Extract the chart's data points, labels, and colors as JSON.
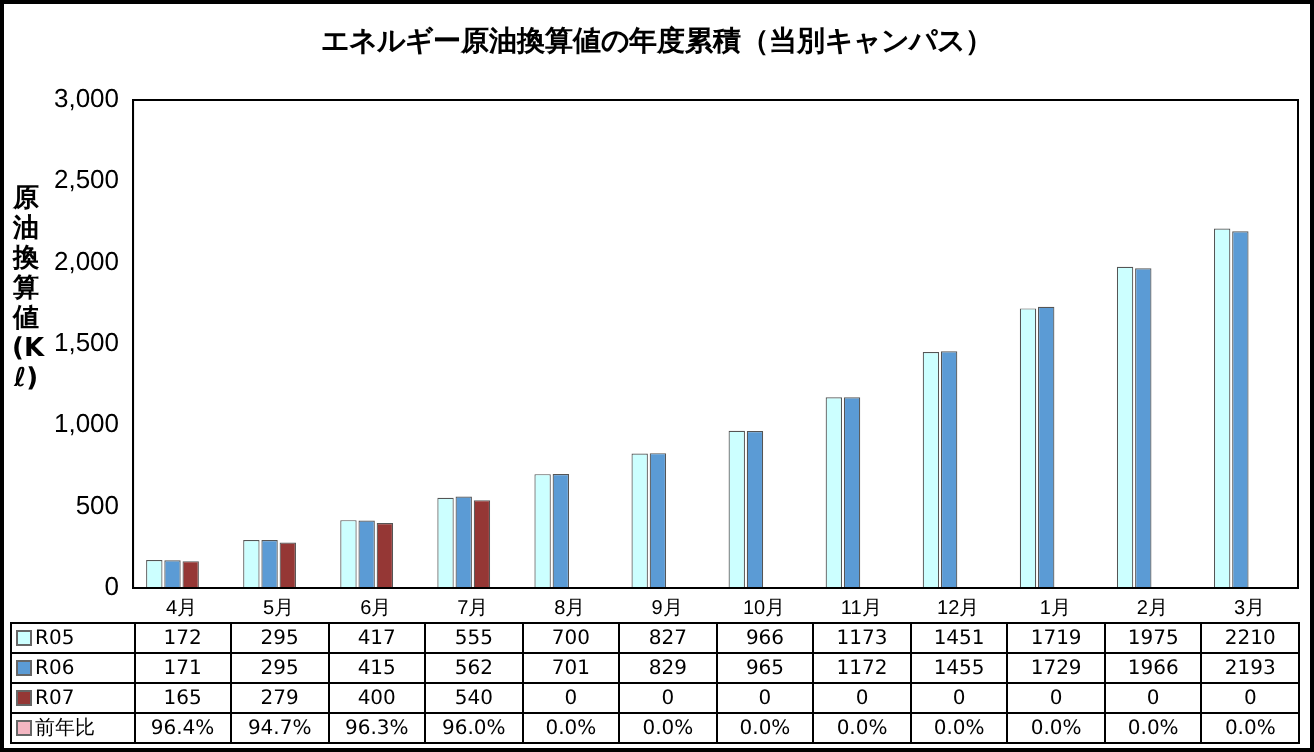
{
  "chart_data": {
    "type": "bar",
    "title": "エネルギー原油換算値の年度累積（当別キャンパス）",
    "ylabel": "原油換算値(Kℓ)",
    "categories": [
      "4月",
      "5月",
      "6月",
      "7月",
      "8月",
      "9月",
      "10月",
      "11月",
      "12月",
      "1月",
      "2月",
      "3月"
    ],
    "series": [
      {
        "name": "R05",
        "color": "#ccffff",
        "values": [
          172,
          295,
          417,
          555,
          700,
          827,
          966,
          1173,
          1451,
          1719,
          1975,
          2210
        ]
      },
      {
        "name": "R06",
        "color": "#5b9bd5",
        "values": [
          171,
          295,
          415,
          562,
          701,
          829,
          965,
          1172,
          1455,
          1729,
          1966,
          2193
        ]
      },
      {
        "name": "R07",
        "color": "#953735",
        "values": [
          165,
          279,
          400,
          540,
          0,
          0,
          0,
          0,
          0,
          0,
          0,
          0
        ]
      },
      {
        "name": "前年比",
        "color": "#f4b6c2",
        "values": [
          null,
          null,
          null,
          null,
          null,
          null,
          null,
          null,
          null,
          null,
          null,
          null
        ],
        "value_labels": [
          "96.4%",
          "94.7%",
          "96.3%",
          "96.0%",
          "0.0%",
          "0.0%",
          "0.0%",
          "0.0%",
          "0.0%",
          "0.0%",
          "0.0%",
          "0.0%"
        ]
      }
    ],
    "ylim": [
      0,
      3000
    ],
    "yticks": [
      {
        "value": 0,
        "label": "0"
      },
      {
        "value": 500,
        "label": "500"
      },
      {
        "value": 1000,
        "label": "1,000"
      },
      {
        "value": 1500,
        "label": "1,500"
      },
      {
        "value": 2000,
        "label": "2,000"
      },
      {
        "value": 2500,
        "label": "2,500"
      },
      {
        "value": 3000,
        "label": "3,000"
      }
    ],
    "grid": false,
    "legend": "bottom",
    "data_labels": true
  }
}
